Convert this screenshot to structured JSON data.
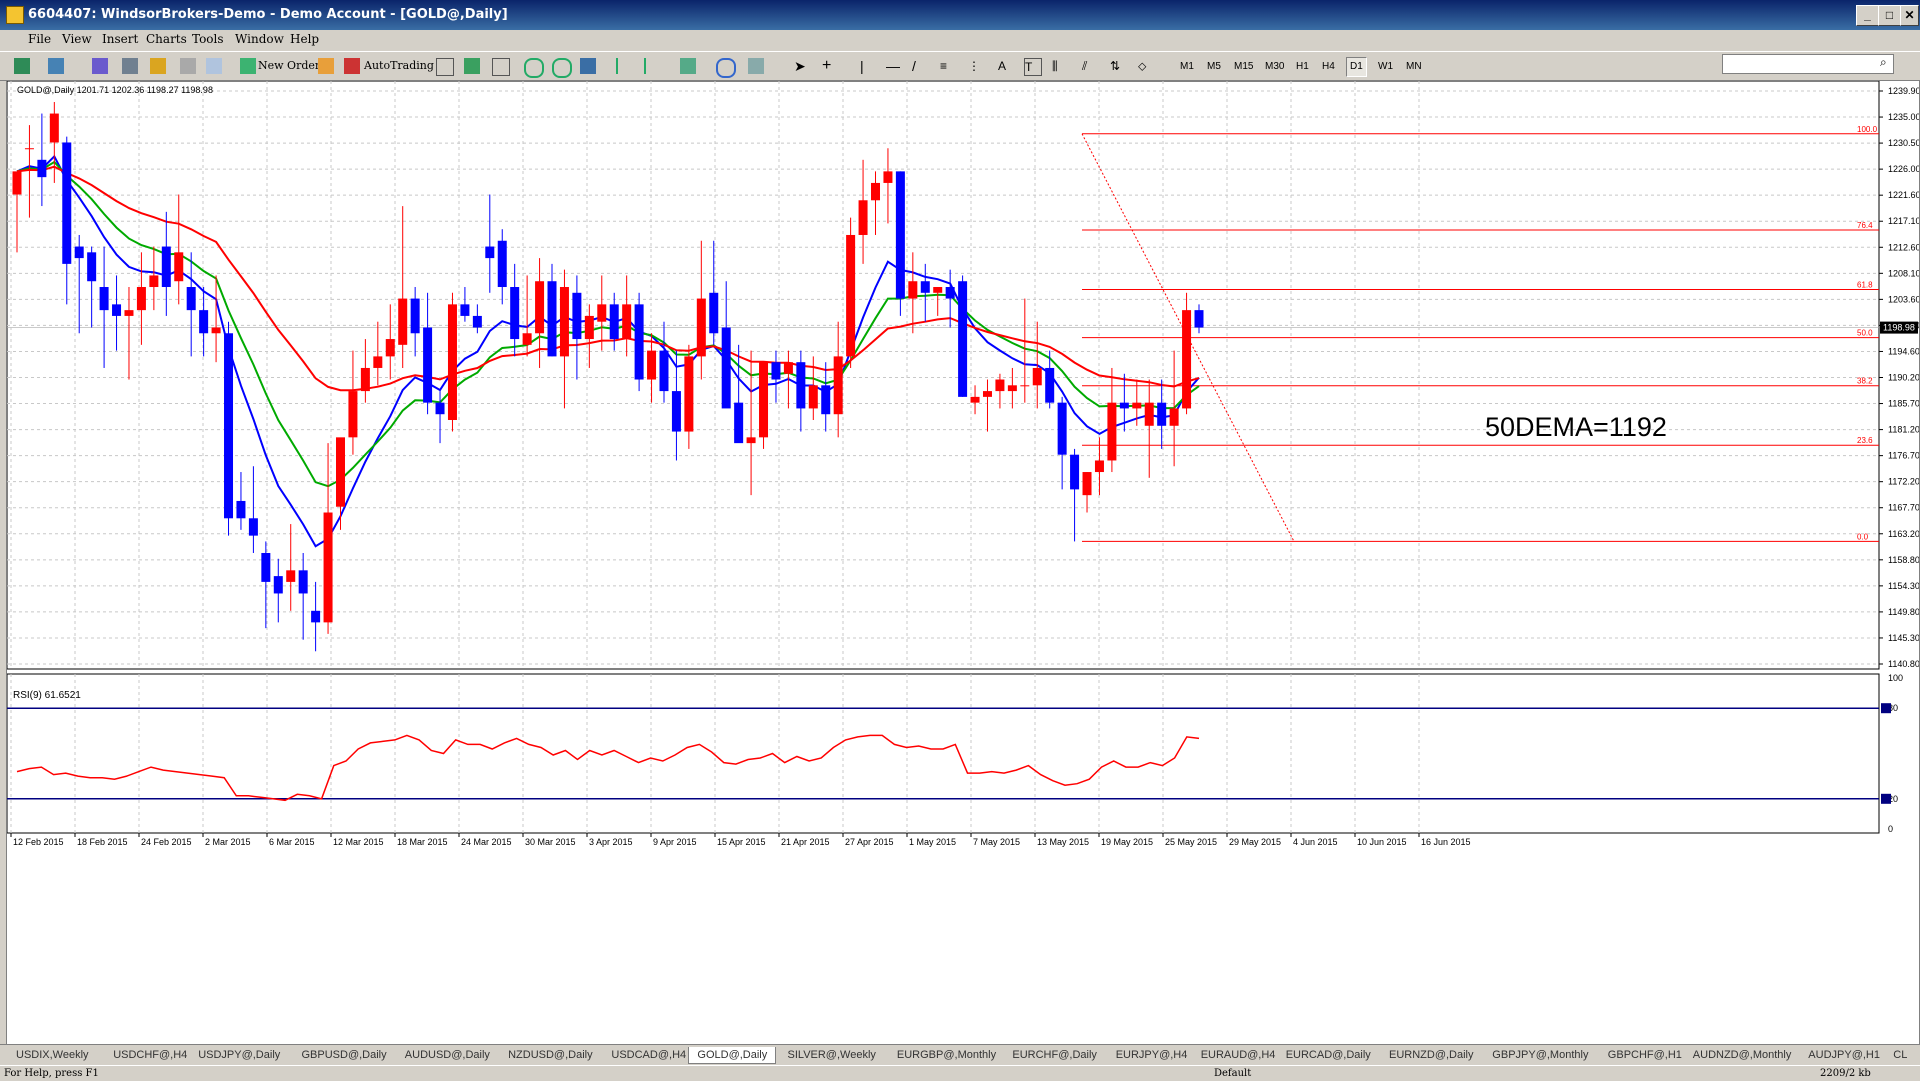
{
  "window": {
    "title": "6604407: WindsorBrokers-Demo - Demo Account - [GOLD@,Daily]"
  },
  "menu": [
    "File",
    "View",
    "Insert",
    "Charts",
    "Tools",
    "Window",
    "Help"
  ],
  "toolbar": {
    "new_order": "New Order",
    "autotrading": "AutoTrading",
    "timeframes": [
      "M1",
      "M5",
      "M15",
      "M30",
      "H1",
      "H4",
      "D1",
      "W1",
      "MN"
    ],
    "active_timeframe": "D1"
  },
  "chart": {
    "symbol_label": "GOLD@,Daily  1201.71 1202.36 1198.27 1198.98",
    "price_ticks": [
      "1239.90",
      "1235.00",
      "1230.50",
      "1226.00",
      "1221.60",
      "1217.10",
      "1212.60",
      "1208.10",
      "1203.60",
      "1199.20",
      "1194.60",
      "1190.20",
      "1185.70",
      "1181.20",
      "1176.70",
      "1172.20",
      "1167.70",
      "1163.20",
      "1158.80",
      "1154.30",
      "1149.80",
      "1145.30",
      "1140.80"
    ],
    "current_price": "1198.98",
    "annotation": "50DEMA=1192",
    "fib_labels": [
      "100.0",
      "76.4",
      "61.8",
      "50.0",
      "38.2",
      "23.6",
      "0.0"
    ],
    "date_ticks": [
      "12 Feb 2015",
      "18 Feb 2015",
      "24 Feb 2015",
      "2 Mar 2015",
      "6 Mar 2015",
      "12 Mar 2015",
      "18 Mar 2015",
      "24 Mar 2015",
      "30 Mar 2015",
      "3 Apr 2015",
      "9 Apr 2015",
      "15 Apr 2015",
      "21 Apr 2015",
      "27 Apr 2015",
      "1 May 2015",
      "7 May 2015",
      "13 May 2015",
      "19 May 2015",
      "25 May 2015",
      "29 May 2015",
      "4 Jun 2015",
      "10 Jun 2015",
      "16 Jun 2015"
    ],
    "colors": {
      "bull": "#ff0000",
      "bear": "#0000ff",
      "ma_fast": "#0000ff",
      "ma_mid": "#00aa00",
      "ma_slow": "#ff0000",
      "fib": "#ff0000",
      "rsi": "#ff0000",
      "rsi_levels": "#000080"
    }
  },
  "rsi": {
    "label": "RSI(9) 61.6521",
    "ticks": [
      "100",
      "80",
      "20",
      "0"
    ]
  },
  "tabs": [
    "USDIX,Weekly",
    "USDCHF@,H4",
    "USDJPY@,Daily",
    "GBPUSD@,Daily",
    "AUDUSD@,Daily",
    "NZDUSD@,Daily",
    "USDCAD@,H4",
    "GOLD@,Daily",
    "SILVER@,Weekly",
    "EURGBP@,Monthly",
    "EURCHF@,Daily",
    "EURJPY@,H4",
    "EURAUD@,H4",
    "EURCAD@,Daily",
    "EURNZD@,Daily",
    "GBPJPY@,Monthly",
    "GBPCHF@,H1",
    "AUDNZD@,Monthly",
    "AUDJPY@,H1",
    "CL"
  ],
  "active_tab": "GOLD@,Daily",
  "status": {
    "help": "For Help, press F1",
    "profile": "Default",
    "traffic": "2209/2 kb"
  }
}
